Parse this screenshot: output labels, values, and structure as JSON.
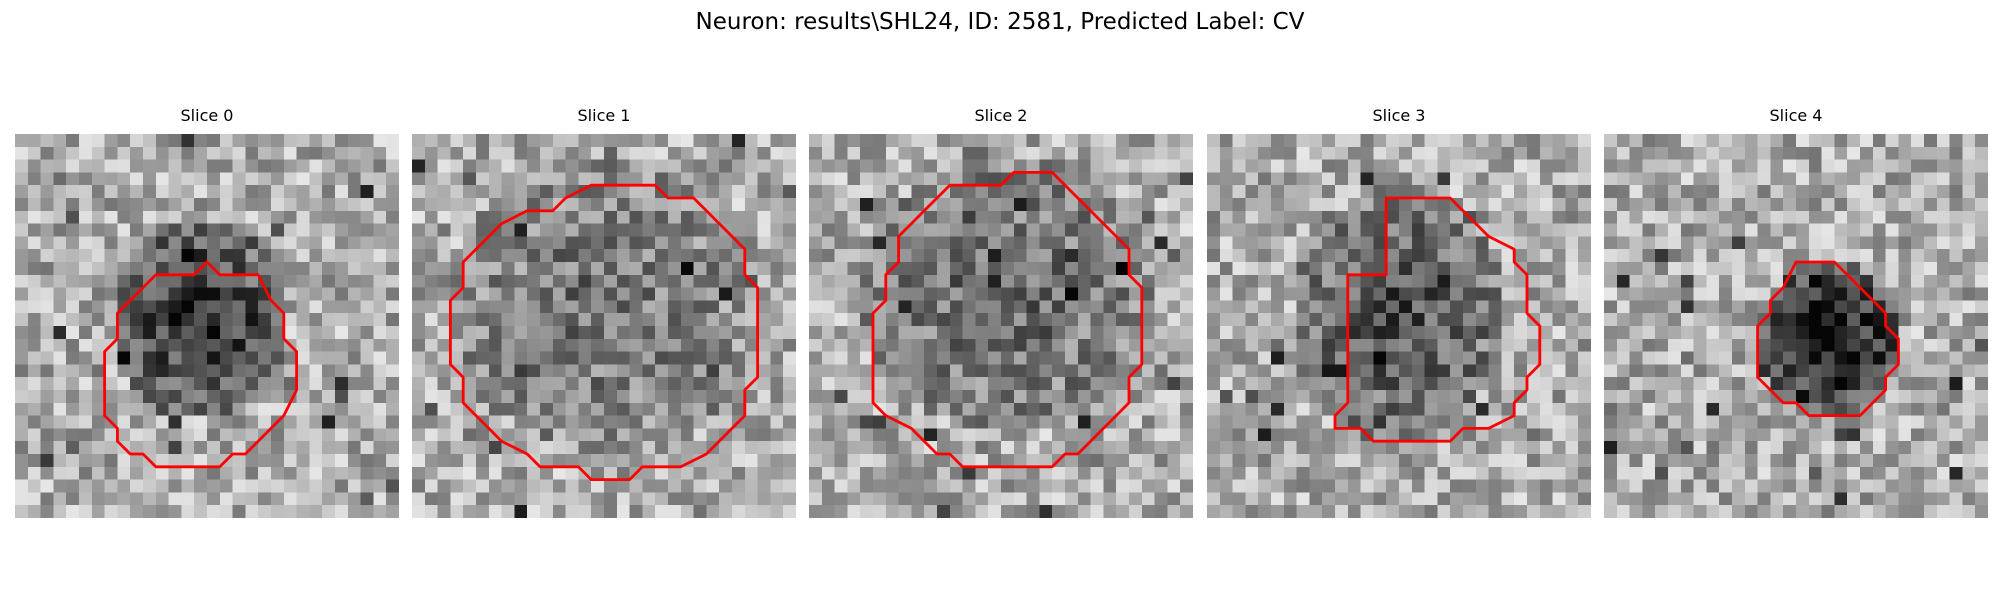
{
  "figure": {
    "title": "Neuron: results\\SHL24, ID: 2581, Predicted Label: CV"
  },
  "colors": {
    "contour": "#ff0000",
    "background": "#ffffff"
  },
  "panels": [
    {
      "title": "Slice 0"
    },
    {
      "title": "Slice 1"
    },
    {
      "title": "Slice 2"
    },
    {
      "title": "Slice 3"
    },
    {
      "title": "Slice 4"
    }
  ]
}
